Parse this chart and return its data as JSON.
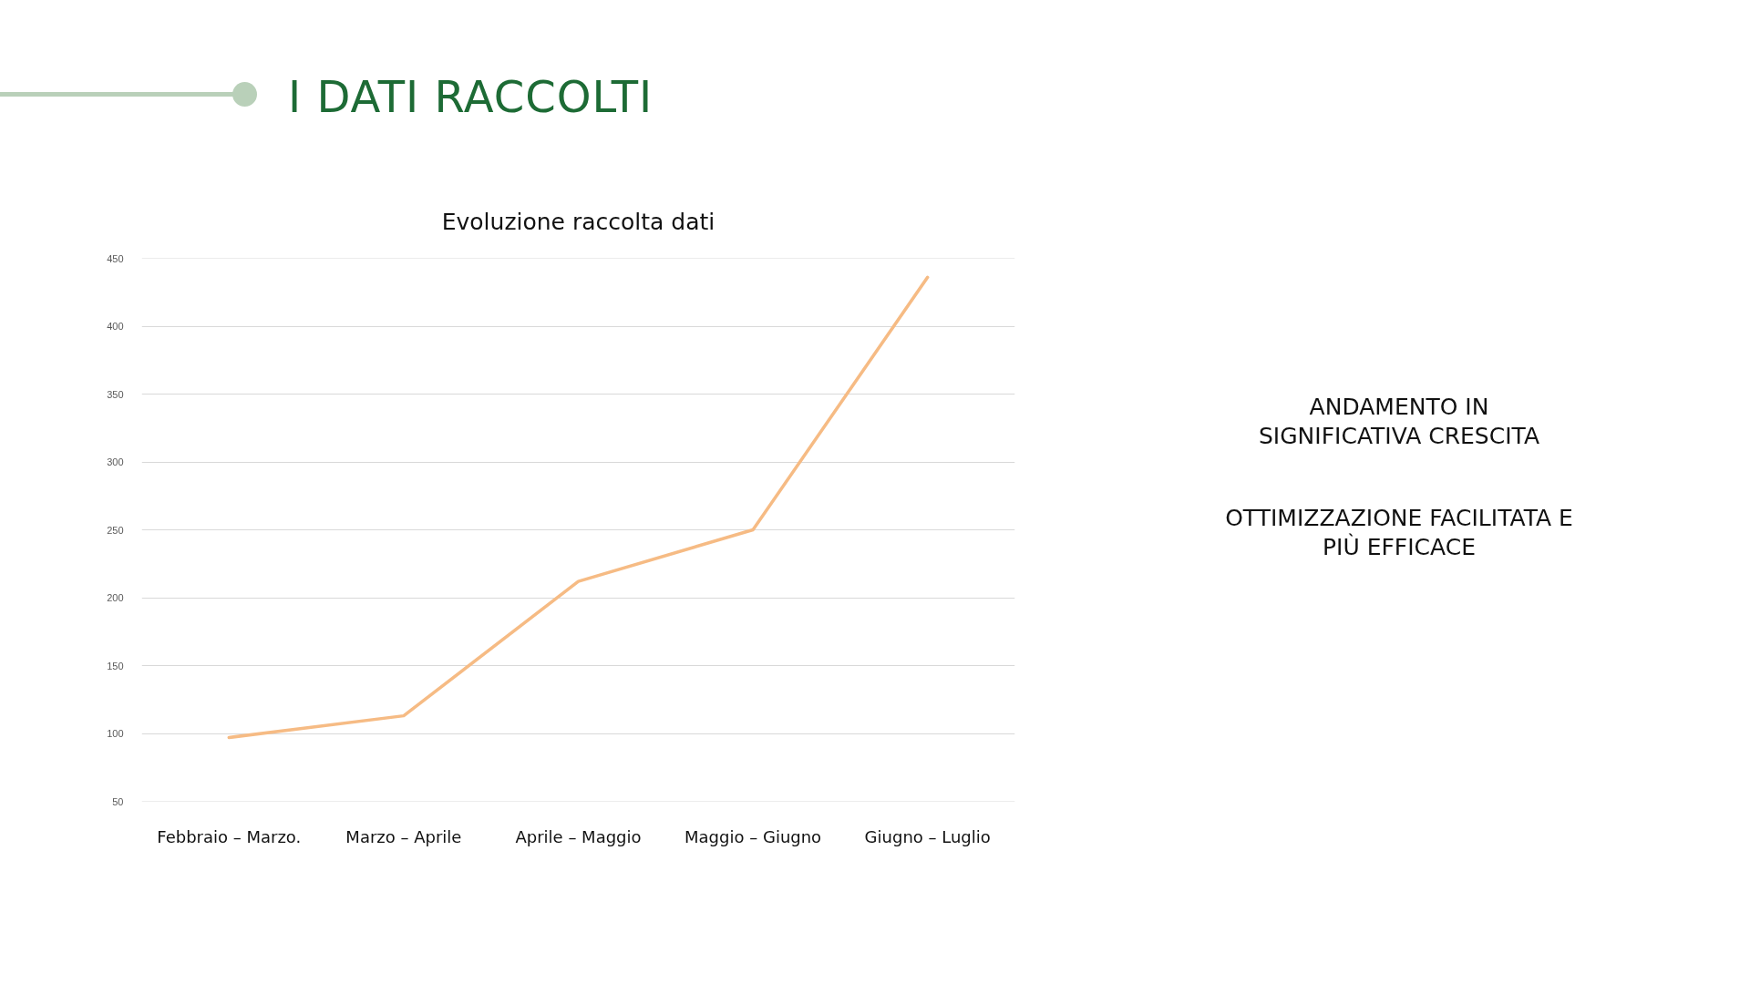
{
  "chart_data": {
    "type": "line",
    "title": "I DATI RACCOLTI",
    "subtitle": "Evoluzione raccolta dati",
    "annotations": [
      "ANDAMENTO IN SIGNIFICATIVA CRESCITA",
      "OTTIMIZZAZIONE FACILITATA E PIÙ EFFICACE"
    ],
    "categories": [
      "Febbraio – Marzo.",
      "Marzo – Aprile",
      "Aprile – Maggio",
      "Maggio – Giugno",
      "Giugno – Luglio"
    ],
    "series": [
      {
        "color": "#f6bb84",
        "values": [
          97,
          113,
          212,
          250,
          436
        ]
      }
    ],
    "ylim": [
      50,
      450
    ],
    "yticks": [
      50,
      100,
      150,
      200,
      250,
      300,
      350,
      400,
      450
    ],
    "grid": "y"
  }
}
